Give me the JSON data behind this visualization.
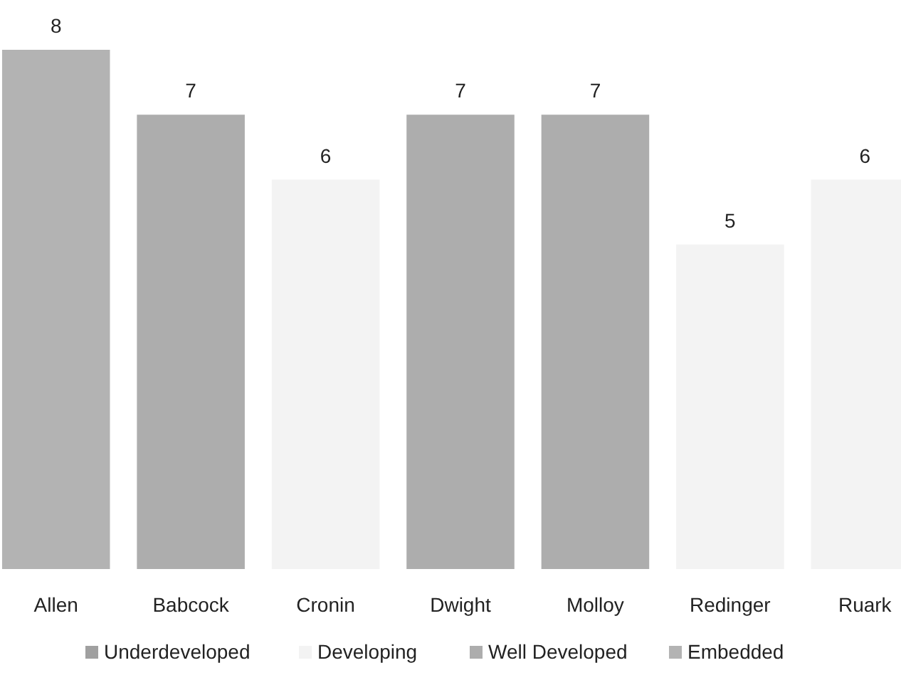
{
  "chart_data": {
    "type": "bar",
    "categories": [
      "Allen",
      "Babcock",
      "Cronin",
      "Dwight",
      "Molloy",
      "Redinger",
      "Ruark"
    ],
    "series": [
      {
        "name": "Underdeveloped",
        "color": "#a0a0a0",
        "values": [
          null,
          null,
          null,
          null,
          null,
          null,
          null
        ]
      },
      {
        "name": "Developing",
        "color": "#f3f3f3",
        "values": [
          null,
          null,
          6,
          null,
          null,
          5,
          6
        ]
      },
      {
        "name": "Well Developed",
        "color": "#adadad",
        "values": [
          null,
          7,
          null,
          7,
          7,
          null,
          null
        ]
      },
      {
        "name": "Embedded",
        "color": "#b3b3b3",
        "values": [
          8,
          null,
          null,
          null,
          null,
          null,
          null
        ]
      }
    ],
    "data_labels": true,
    "legend": "bottom",
    "grid": false
  }
}
